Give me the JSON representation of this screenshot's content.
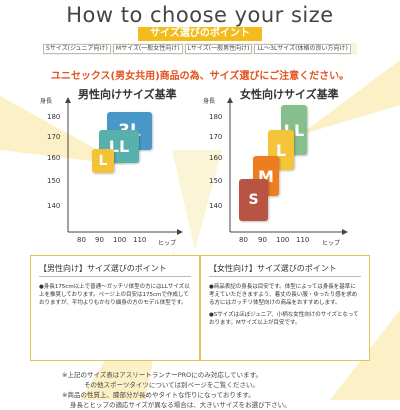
{
  "header": {
    "title": "How to choose your size",
    "subtitle": "サイズ選びのポイント",
    "size_tags": [
      "Sサイズ(ジュニア向け)",
      "Mサイズ(一般女性向け)",
      "Lサイズ(一般男性向け)",
      "LL〜3Lサイズ(体格の良い方向け)"
    ]
  },
  "notice": "ユニセックス(男女共用)商品の為、サイズ選びにご注意ください。",
  "men_chart": {
    "title": "男性向けサイズ基準",
    "y_label": "身長",
    "x_label": "ヒップ",
    "y_ticks": [
      "180",
      "170",
      "160",
      "150",
      "140"
    ],
    "x_ticks": [
      "80",
      "90",
      "100",
      "110"
    ]
  },
  "women_chart": {
    "title": "女性向けサイズ基準",
    "y_label": "身長",
    "x_label": "ヒップ",
    "y_ticks": [
      "180",
      "170",
      "160",
      "150",
      "140"
    ],
    "x_ticks": [
      "80",
      "90",
      "100",
      "110"
    ]
  },
  "chart_data": [
    {
      "type": "bar",
      "title": "男性向けサイズ基準",
      "ylabel": "身長",
      "xlabel": "ヒップ",
      "ylim": [
        135,
        185
      ],
      "xlim": [
        75,
        120
      ],
      "sizes": [
        {
          "label": "3L",
          "hip": [
            96,
            106
          ],
          "height": [
            162,
            174
          ],
          "color": "#4a98c8"
        },
        {
          "label": "LL",
          "hip": [
            93,
            103
          ],
          "height": [
            158,
            170
          ],
          "color": "#58b0ad"
        },
        {
          "label": "L",
          "hip": [
            89,
            99
          ],
          "height": [
            155,
            166
          ],
          "color": "#f3c236"
        }
      ]
    },
    {
      "type": "bar",
      "title": "女性向けサイズ基準",
      "ylabel": "身長",
      "xlabel": "ヒップ",
      "ylim": [
        135,
        185
      ],
      "xlim": [
        75,
        120
      ],
      "sizes": [
        {
          "label": "LL",
          "hip": [
            100,
            110
          ],
          "height": [
            162,
            174
          ],
          "color": "#86bf8c"
        },
        {
          "label": "L",
          "hip": [
            96,
            106
          ],
          "height": [
            158,
            169
          ],
          "color": "#f4c43a"
        },
        {
          "label": "M",
          "hip": [
            92,
            102
          ],
          "height": [
            150,
            161
          ],
          "color": "#ee7d22"
        },
        {
          "label": "S",
          "hip": [
            88,
            98
          ],
          "height": [
            142,
            153
          ],
          "color": "#b85443"
        }
      ]
    }
  ],
  "men_panel": {
    "heading": "【男性向け】サイズ選びのポイント",
    "body": "●身長175cm以上で普通〜ガッチリ体型の方にはLLサイズ以上を推奨しております。ページ上の目安は175cmで作成しておりますが、平均よりもかなり細身の方のモデル体型です。"
  },
  "women_panel": {
    "heading": "【女性向け】サイズ選びのポイント",
    "body1": "●商品表記の身長は目安です。体型によっては身長を基準に考えていただきますよう、着丈の長い服・ゆったり感を求める方にはガッチリ体型向けの商品をおすすめします。",
    "body2": "●Sサイズはほぼジュニア、小柄な女性向けのサイズとなっております。Mサイズ以上が目安です。"
  },
  "footer": {
    "line1": "※上記のサイズ表はアスリートランナーPROにのみ対応しています。",
    "line2": "その他スポーツタイツについては別ページをご覧ください。",
    "line3": "※商品の性質上、膝部分が長めやタイトな作りになっております。",
    "line4": "身長とヒップの適応サイズが異なる場合は、大きいサイズをお選び下さい。"
  }
}
